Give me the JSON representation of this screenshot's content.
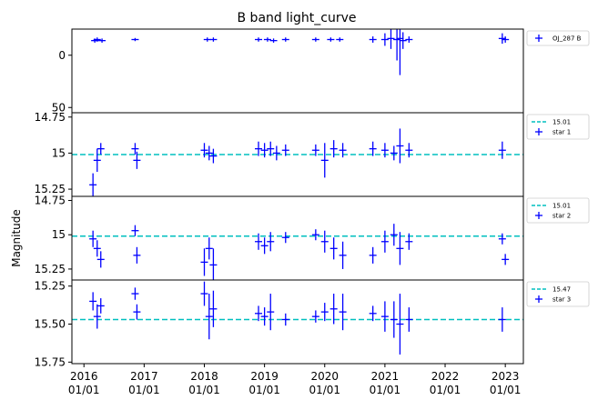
{
  "chart_data": {
    "type": "scatter",
    "title": "B band light_curve",
    "ylabel": "Magnitude",
    "xlabel": "",
    "x_ticks": [
      "2016\n01/01",
      "2017\n01/01",
      "2018\n01/01",
      "2019\n01/01",
      "2020\n01/01",
      "2021\n01/01",
      "2022\n01/01",
      "2023\n01/01"
    ],
    "x_tick_years": [
      2016,
      2017,
      2018,
      2019,
      2020,
      2021,
      2022,
      2023
    ],
    "xlim": [
      2015.8,
      2023.3
    ],
    "colors": {
      "points": "#0000ff",
      "reference": "#00bfbf",
      "frame": "#000000"
    },
    "panels": [
      {
        "name": "OJ_287 B",
        "ylim": [
          55,
          -25
        ],
        "y_ticks": [
          0,
          50
        ],
        "inverted": true,
        "reference": null,
        "points": [
          {
            "x": 2016.18,
            "y": -14,
            "err": 2
          },
          {
            "x": 2016.22,
            "y": -15,
            "err": 2
          },
          {
            "x": 2016.3,
            "y": -14,
            "err": 2
          },
          {
            "x": 2016.85,
            "y": -15,
            "err": 1.5
          },
          {
            "x": 2018.05,
            "y": -15,
            "err": 2
          },
          {
            "x": 2018.15,
            "y": -15,
            "err": 2
          },
          {
            "x": 2018.9,
            "y": -15,
            "err": 2
          },
          {
            "x": 2019.05,
            "y": -15,
            "err": 2
          },
          {
            "x": 2019.15,
            "y": -14,
            "err": 2
          },
          {
            "x": 2019.35,
            "y": -15,
            "err": 2
          },
          {
            "x": 2019.85,
            "y": -15,
            "err": 2
          },
          {
            "x": 2020.1,
            "y": -15,
            "err": 2
          },
          {
            "x": 2020.25,
            "y": -15,
            "err": 2
          },
          {
            "x": 2020.8,
            "y": -15,
            "err": 3
          },
          {
            "x": 2021.0,
            "y": -15,
            "err": 6
          },
          {
            "x": 2021.1,
            "y": -16,
            "err": 10
          },
          {
            "x": 2021.2,
            "y": -15,
            "err": 20
          },
          {
            "x": 2021.25,
            "y": -16,
            "err": 35
          },
          {
            "x": 2021.3,
            "y": -14,
            "err": 8
          },
          {
            "x": 2021.4,
            "y": -15,
            "err": 3
          },
          {
            "x": 2022.95,
            "y": -16,
            "err": 5
          },
          {
            "x": 2023.0,
            "y": -15,
            "err": 3
          }
        ]
      },
      {
        "name": "star 1",
        "ylim": [
          15.3,
          14.72
        ],
        "y_ticks": [
          14.75,
          15.0,
          15.25
        ],
        "inverted": true,
        "reference": {
          "value": 15.01,
          "label": "15.01"
        },
        "points": [
          {
            "x": 2016.15,
            "y": 15.22,
            "err": 0.08
          },
          {
            "x": 2016.22,
            "y": 15.05,
            "err": 0.08
          },
          {
            "x": 2016.28,
            "y": 14.97,
            "err": 0.04
          },
          {
            "x": 2016.85,
            "y": 14.97,
            "err": 0.04
          },
          {
            "x": 2016.88,
            "y": 15.05,
            "err": 0.06
          },
          {
            "x": 2018.0,
            "y": 14.98,
            "err": 0.05
          },
          {
            "x": 2018.08,
            "y": 15.0,
            "err": 0.05
          },
          {
            "x": 2018.15,
            "y": 15.02,
            "err": 0.05
          },
          {
            "x": 2018.9,
            "y": 14.97,
            "err": 0.05
          },
          {
            "x": 2019.0,
            "y": 14.98,
            "err": 0.05
          },
          {
            "x": 2019.1,
            "y": 14.97,
            "err": 0.05
          },
          {
            "x": 2019.2,
            "y": 15.0,
            "err": 0.05
          },
          {
            "x": 2019.35,
            "y": 14.98,
            "err": 0.04
          },
          {
            "x": 2019.85,
            "y": 14.98,
            "err": 0.04
          },
          {
            "x": 2020.0,
            "y": 15.05,
            "err": 0.12
          },
          {
            "x": 2020.15,
            "y": 14.97,
            "err": 0.06
          },
          {
            "x": 2020.3,
            "y": 14.98,
            "err": 0.05
          },
          {
            "x": 2020.8,
            "y": 14.97,
            "err": 0.05
          },
          {
            "x": 2021.0,
            "y": 14.98,
            "err": 0.05
          },
          {
            "x": 2021.15,
            "y": 15.0,
            "err": 0.05
          },
          {
            "x": 2021.25,
            "y": 14.95,
            "err": 0.12
          },
          {
            "x": 2021.4,
            "y": 14.98,
            "err": 0.05
          },
          {
            "x": 2022.95,
            "y": 14.98,
            "err": 0.06
          }
        ]
      },
      {
        "name": "star 2",
        "ylim": [
          15.33,
          14.72
        ],
        "y_ticks": [
          14.75,
          15.0,
          15.25
        ],
        "inverted": true,
        "reference": {
          "value": 15.01,
          "label": "15.01"
        },
        "points": [
          {
            "x": 2016.15,
            "y": 15.03,
            "err": 0.06
          },
          {
            "x": 2016.22,
            "y": 15.1,
            "err": 0.06
          },
          {
            "x": 2016.28,
            "y": 15.18,
            "err": 0.06
          },
          {
            "x": 2016.85,
            "y": 14.97,
            "err": 0.04
          },
          {
            "x": 2016.88,
            "y": 15.15,
            "err": 0.06
          },
          {
            "x": 2018.0,
            "y": 15.2,
            "err": 0.1
          },
          {
            "x": 2018.08,
            "y": 15.1,
            "err": 0.08
          },
          {
            "x": 2018.15,
            "y": 15.22,
            "err": 0.12
          },
          {
            "x": 2018.9,
            "y": 15.05,
            "err": 0.06
          },
          {
            "x": 2019.0,
            "y": 15.08,
            "err": 0.06
          },
          {
            "x": 2019.1,
            "y": 15.05,
            "err": 0.07
          },
          {
            "x": 2019.35,
            "y": 15.02,
            "err": 0.04
          },
          {
            "x": 2019.85,
            "y": 15.0,
            "err": 0.04
          },
          {
            "x": 2020.0,
            "y": 15.05,
            "err": 0.08
          },
          {
            "x": 2020.15,
            "y": 15.1,
            "err": 0.08
          },
          {
            "x": 2020.3,
            "y": 15.15,
            "err": 0.1
          },
          {
            "x": 2020.8,
            "y": 15.15,
            "err": 0.06
          },
          {
            "x": 2021.0,
            "y": 15.05,
            "err": 0.08
          },
          {
            "x": 2021.15,
            "y": 15.0,
            "err": 0.08
          },
          {
            "x": 2021.25,
            "y": 15.1,
            "err": 0.12
          },
          {
            "x": 2021.4,
            "y": 15.05,
            "err": 0.06
          },
          {
            "x": 2022.95,
            "y": 15.03,
            "err": 0.04
          },
          {
            "x": 2023.0,
            "y": 15.18,
            "err": 0.04
          }
        ]
      },
      {
        "name": "star 3",
        "ylim": [
          15.76,
          15.21
        ],
        "y_ticks": [
          15.25,
          15.5,
          15.75
        ],
        "inverted": true,
        "reference": {
          "value": 15.47,
          "label": "15.47"
        },
        "points": [
          {
            "x": 2016.15,
            "y": 15.35,
            "err": 0.06
          },
          {
            "x": 2016.22,
            "y": 15.45,
            "err": 0.08
          },
          {
            "x": 2016.28,
            "y": 15.38,
            "err": 0.05
          },
          {
            "x": 2016.85,
            "y": 15.3,
            "err": 0.04
          },
          {
            "x": 2016.88,
            "y": 15.42,
            "err": 0.05
          },
          {
            "x": 2018.0,
            "y": 15.3,
            "err": 0.08
          },
          {
            "x": 2018.08,
            "y": 15.45,
            "err": 0.15
          },
          {
            "x": 2018.15,
            "y": 15.4,
            "err": 0.12
          },
          {
            "x": 2018.9,
            "y": 15.43,
            "err": 0.05
          },
          {
            "x": 2019.0,
            "y": 15.45,
            "err": 0.06
          },
          {
            "x": 2019.1,
            "y": 15.42,
            "err": 0.12
          },
          {
            "x": 2019.35,
            "y": 15.47,
            "err": 0.04
          },
          {
            "x": 2019.85,
            "y": 15.45,
            "err": 0.04
          },
          {
            "x": 2020.0,
            "y": 15.42,
            "err": 0.06
          },
          {
            "x": 2020.15,
            "y": 15.4,
            "err": 0.1
          },
          {
            "x": 2020.3,
            "y": 15.42,
            "err": 0.12
          },
          {
            "x": 2020.8,
            "y": 15.43,
            "err": 0.05
          },
          {
            "x": 2021.0,
            "y": 15.45,
            "err": 0.1
          },
          {
            "x": 2021.15,
            "y": 15.47,
            "err": 0.12
          },
          {
            "x": 2021.25,
            "y": 15.5,
            "err": 0.2
          },
          {
            "x": 2021.4,
            "y": 15.47,
            "err": 0.08
          },
          {
            "x": 2022.95,
            "y": 15.47,
            "err": 0.08
          }
        ]
      }
    ]
  }
}
